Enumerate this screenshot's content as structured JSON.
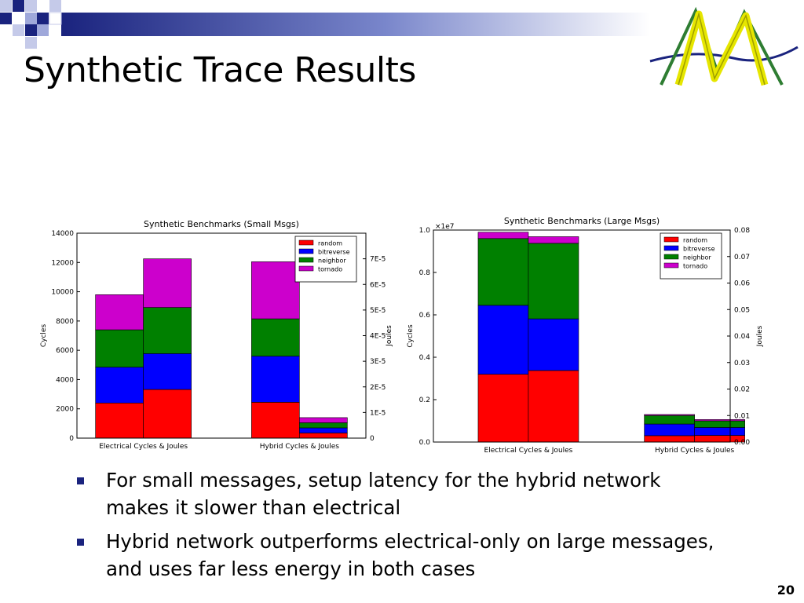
{
  "slide": {
    "title": "Synthetic Trace Results",
    "page_number": "20",
    "bullets": [
      "For small messages, setup latency for the hybrid network makes it slower than electrical",
      "Hybrid network outperforms electrical-only on large messages, and uses far less energy in both cases"
    ],
    "logo_icon": "bridge-m-logo-icon",
    "accent_color": "#1a237e"
  },
  "chart_data": [
    {
      "type": "bar",
      "stacked": true,
      "title": "Synthetic Benchmarks (Small Msgs)",
      "ylabel": "Cycles",
      "y2label": "Joules",
      "categories": [
        "Electrical Cycles & Joules",
        "Hybrid Cycles & Joules"
      ],
      "bar_groups": [
        {
          "category": "Electrical Cycles & Joules",
          "bars": [
            {
              "axis": "left",
              "values": [
                2400,
                2450,
                2550,
                2400
              ]
            },
            {
              "axis": "right",
              "values": [
                1.9e-05,
                1.4e-05,
                1.8e-05,
                1.9e-05
              ]
            }
          ]
        },
        {
          "category": "Hybrid Cycles & Joules",
          "bars": [
            {
              "axis": "left",
              "values": [
                2450,
                3150,
                2550,
                3900
              ]
            },
            {
              "axis": "right",
              "values": [
                2e-06,
                2e-06,
                2e-06,
                2e-06
              ]
            }
          ]
        }
      ],
      "series": [
        {
          "name": "random",
          "color": "#ff0000"
        },
        {
          "name": "bitreverse",
          "color": "#0000ff"
        },
        {
          "name": "neighbor",
          "color": "#008000"
        },
        {
          "name": "tornado",
          "color": "#cc00cc"
        }
      ],
      "ylim": [
        0,
        14000
      ],
      "yticks": [
        "0",
        "2000",
        "4000",
        "6000",
        "8000",
        "10000",
        "12000",
        "14000"
      ],
      "y2lim": [
        0,
        8e-05
      ],
      "y2ticks": [
        "0",
        "1E-5",
        "2E-5",
        "3E-5",
        "4E-5",
        "5E-5",
        "6E-5",
        "7E-5"
      ],
      "legend": "top-right",
      "grid": false
    },
    {
      "type": "bar",
      "stacked": true,
      "title": "Synthetic Benchmarks (Large Msgs)",
      "ylabel": "Cycles",
      "y2label": "Joules",
      "yscale_label": "×1e7",
      "categories": [
        "Electrical Cycles & Joules",
        "Hybrid Cycles & Joules"
      ],
      "bar_groups": [
        {
          "category": "Electrical Cycles & Joules",
          "bars": [
            {
              "axis": "left",
              "values": [
                0.32,
                0.325,
                0.315,
                0.03
              ]
            },
            {
              "axis": "right",
              "values": [
                0.027,
                0.0195,
                0.0285,
                0.0025
              ]
            }
          ]
        },
        {
          "category": "Hybrid Cycles & Joules",
          "bars": [
            {
              "axis": "left",
              "values": [
                0.03,
                0.055,
                0.04,
                0.005
              ]
            },
            {
              "axis": "right",
              "values": [
                0.0025,
                0.003,
                0.0025,
                0.0005
              ]
            }
          ]
        }
      ],
      "series": [
        {
          "name": "random",
          "color": "#ff0000"
        },
        {
          "name": "bitreverse",
          "color": "#0000ff"
        },
        {
          "name": "neighbor",
          "color": "#008000"
        },
        {
          "name": "tornado",
          "color": "#cc00cc"
        }
      ],
      "ylim": [
        0,
        1.0
      ],
      "yticks": [
        "0.0",
        "0.2",
        "0.4",
        "0.6",
        "0.8",
        "1.0"
      ],
      "y2lim": [
        0,
        0.08
      ],
      "y2ticks": [
        "0.00",
        "0.01",
        "0.02",
        "0.03",
        "0.04",
        "0.05",
        "0.06",
        "0.07",
        "0.08"
      ],
      "legend": "top-right",
      "grid": false
    }
  ]
}
